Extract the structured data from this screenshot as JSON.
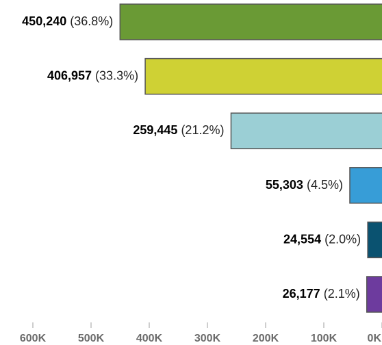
{
  "chart_data": {
    "type": "bar",
    "orientation": "horizontal",
    "x_axis_direction": "reversed",
    "values": [
      450240,
      406957,
      259445,
      55303,
      24554,
      26177
    ],
    "value_labels": [
      "450,240",
      "406,957",
      "259,445",
      "55,303",
      "24,554",
      "26,177"
    ],
    "percent_labels": [
      "(36.8%)",
      "(33.3%)",
      "(21.2%)",
      "(4.5%)",
      "(2.0%)",
      "(2.1%)"
    ],
    "colors": [
      "#6a9a35",
      "#cfd134",
      "#9bcfd5",
      "#379dd7",
      "#0a5270",
      "#6d3b9e"
    ],
    "xlim": [
      0,
      600000
    ],
    "xticks": [
      600000,
      500000,
      400000,
      300000,
      200000,
      100000,
      0
    ],
    "xtick_labels": [
      "600K",
      "500K",
      "400K",
      "300K",
      "200K",
      "100K",
      "0K"
    ],
    "grid": false,
    "legend": "none"
  }
}
